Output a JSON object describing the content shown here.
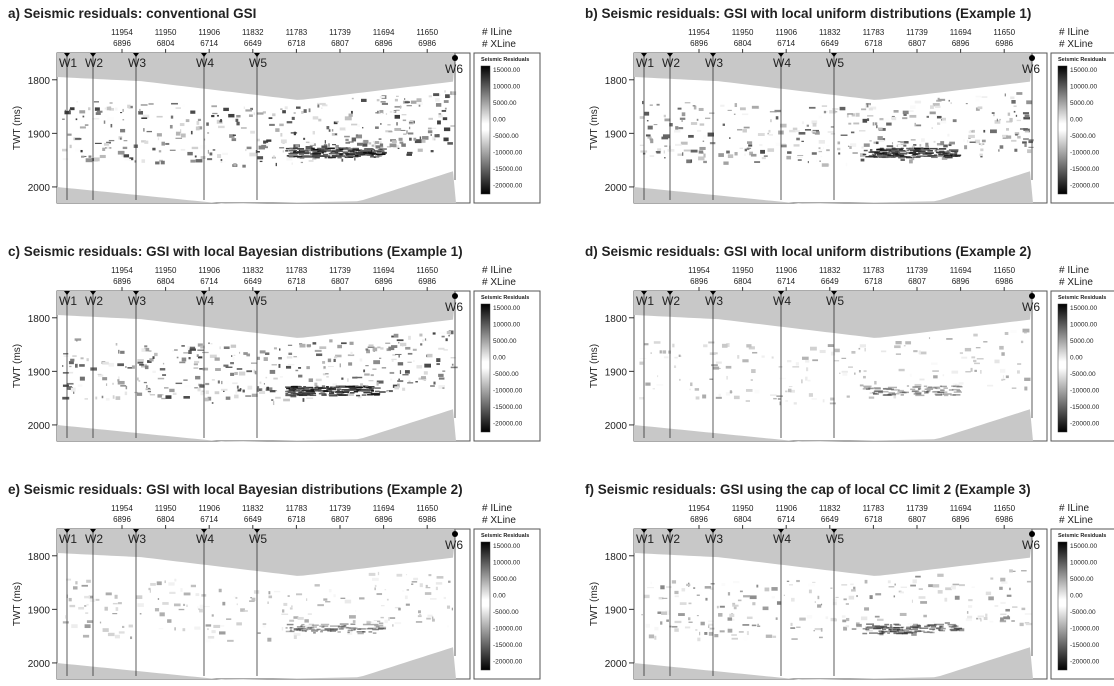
{
  "panels": [
    {
      "title": "a) Seismic residuals: conventional GSI"
    },
    {
      "title": "b) Seismic residuals: GSI with local uniform distributions (Example 1)"
    },
    {
      "title": "c) Seismic residuals: GSI with local Bayesian distributions (Example 1)"
    },
    {
      "title": "d) Seismic residuals: GSI with local uniform distributions (Example 2)"
    },
    {
      "title": "e) Seismic residuals: GSI with local Bayesian distributions (Example 2)"
    },
    {
      "title": "f) Seismic residuals: GSI using the cap of local CC limit 2 (Example 3)"
    }
  ],
  "axes": {
    "ilines": [
      "11954",
      "11950",
      "11906",
      "11832",
      "11783",
      "11739",
      "11694",
      "11650"
    ],
    "xlines": [
      "6896",
      "6804",
      "6714",
      "6649",
      "6718",
      "6807",
      "6896",
      "6986"
    ],
    "iline_label": "# ILine",
    "xline_label": "# XLine",
    "y_label": "TWT (ms)",
    "ylim": [
      1750,
      2030
    ],
    "yticks": [
      1800,
      1900,
      2000
    ]
  },
  "wells": [
    "W1",
    "W2",
    "W3",
    "W4",
    "W5",
    "W6"
  ],
  "colorbar": {
    "title": "Seismic Residuals",
    "labels": [
      "15000.00",
      "10000.00",
      "5000.00",
      "0.00",
      "-5000.00",
      "-10000.00",
      "-15000.00",
      "-20000.00"
    ]
  }
}
